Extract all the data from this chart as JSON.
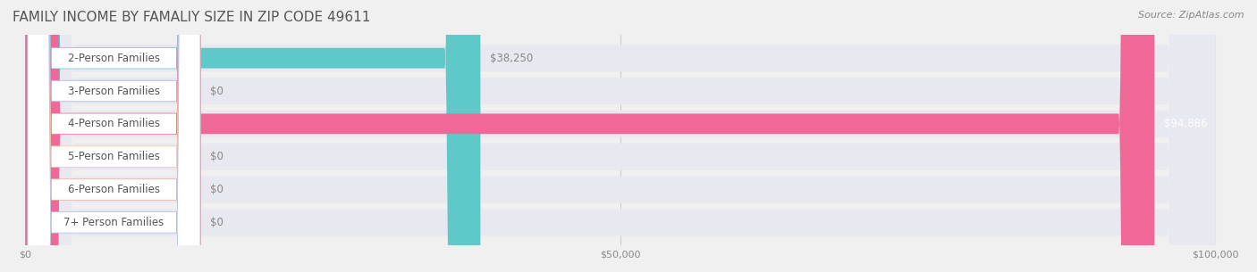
{
  "title": "FAMILY INCOME BY FAMALIY SIZE IN ZIP CODE 49611",
  "source": "Source: ZipAtlas.com",
  "categories": [
    "2-Person Families",
    "3-Person Families",
    "4-Person Families",
    "5-Person Families",
    "6-Person Families",
    "7+ Person Families"
  ],
  "values": [
    38250,
    0,
    94886,
    0,
    0,
    0
  ],
  "bar_colors": [
    "#5fc8c8",
    "#a0a8e8",
    "#f06898",
    "#f8c888",
    "#f0a898",
    "#a8b8e8"
  ],
  "label_colors": [
    "#5fc8c8",
    "#a0a8e8",
    "#f06898",
    "#f8c888",
    "#f0a898",
    "#a8b8e8"
  ],
  "value_labels": [
    "$38,250",
    "$0",
    "$94,886",
    "$0",
    "$0",
    "$0"
  ],
  "xlim": [
    0,
    100000
  ],
  "xticks": [
    0,
    50000,
    100000
  ],
  "xtick_labels": [
    "$0",
    "$50,000",
    "$100,000"
  ],
  "background_color": "#f0f0f0",
  "bar_bg_color": "#e8e8e8",
  "title_fontsize": 11,
  "source_fontsize": 8,
  "label_fontsize": 8.5,
  "value_fontsize": 8.5
}
